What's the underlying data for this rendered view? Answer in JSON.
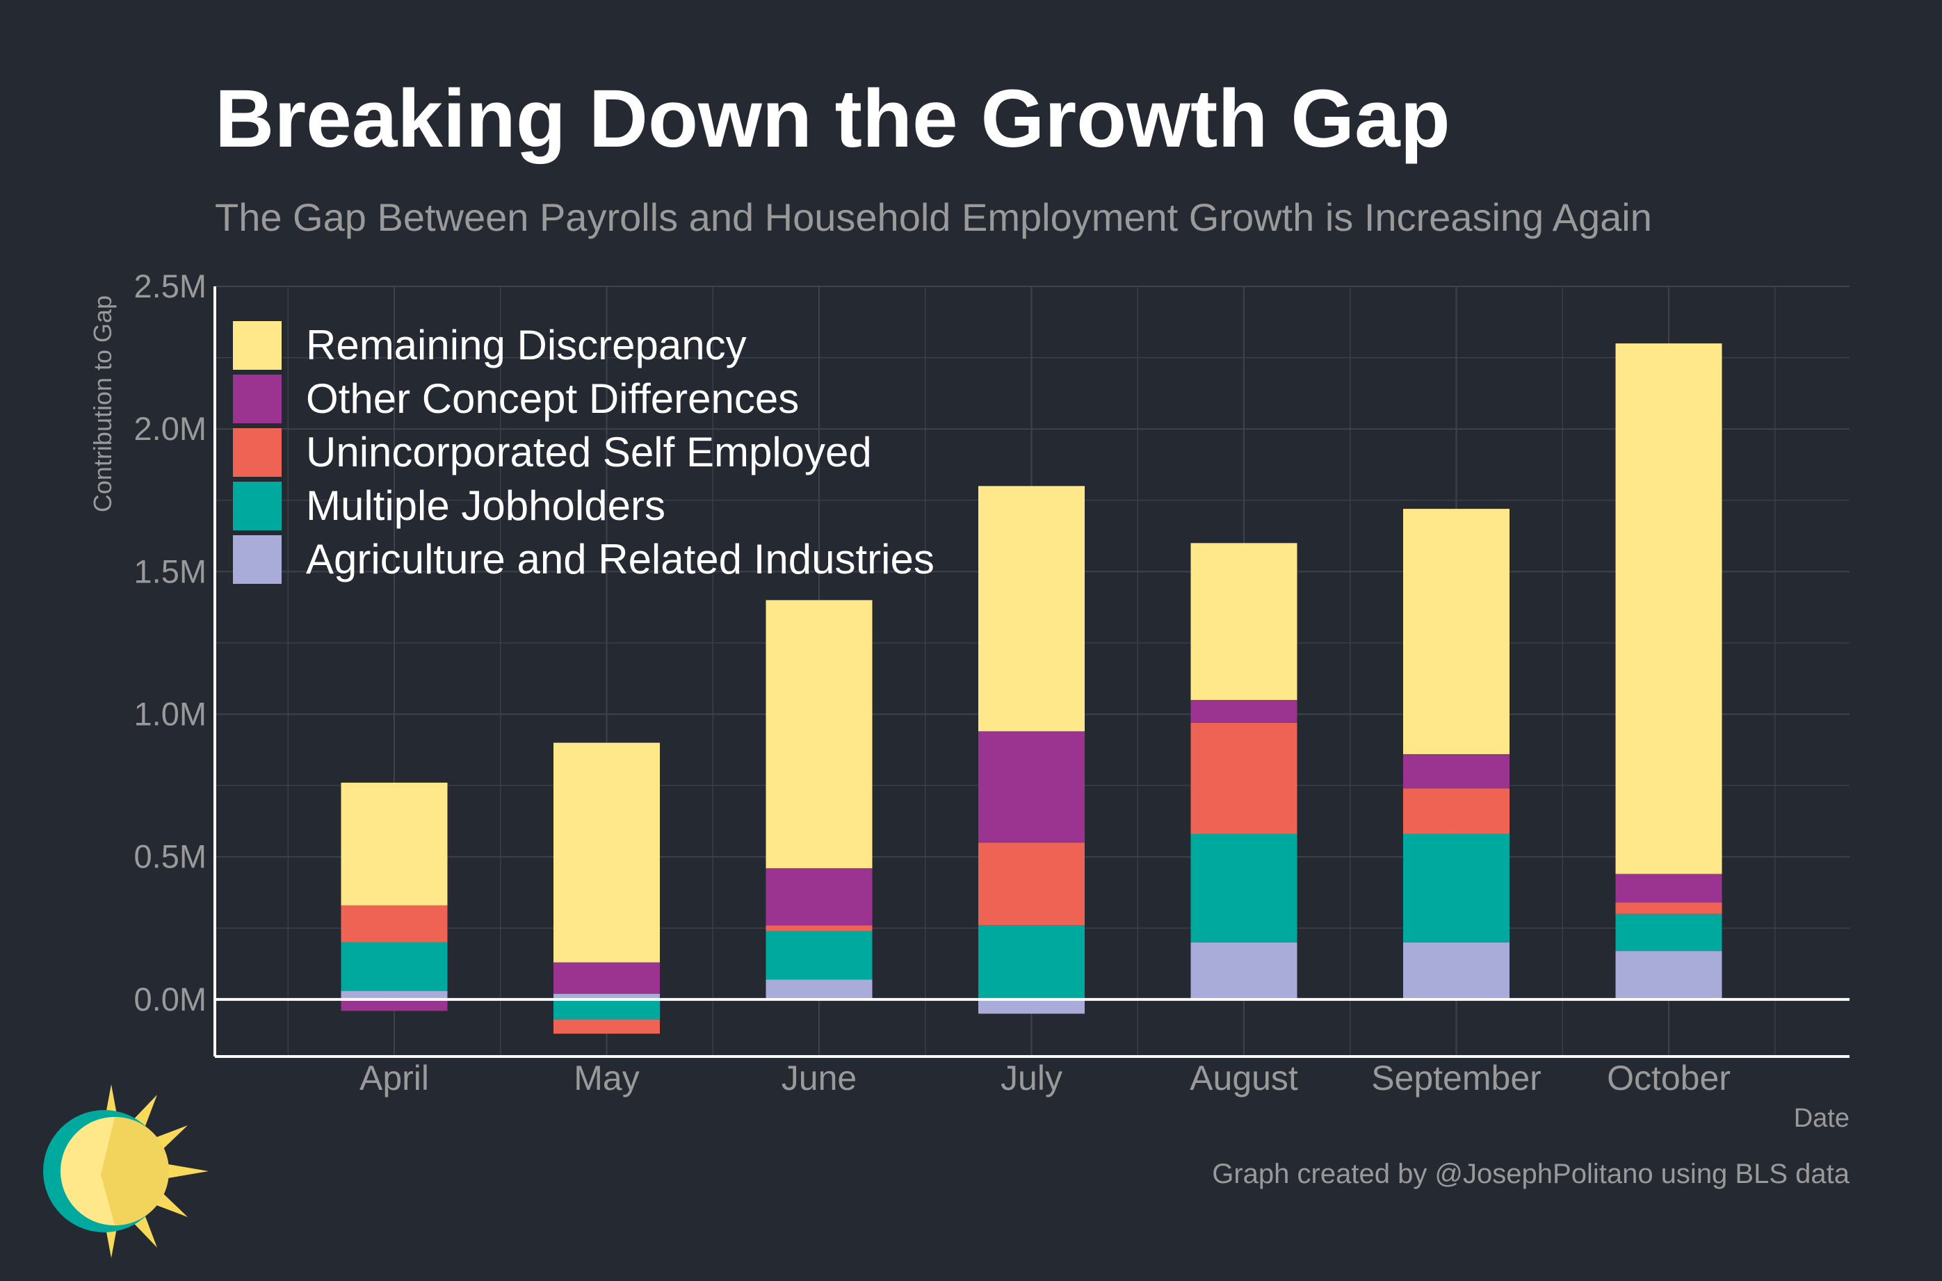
{
  "header": {
    "title": "Breaking Down the Growth Gap",
    "subtitle": "The Gap Between Payrolls and Household Employment Growth is Increasing Again"
  },
  "footer": {
    "caption": "Graph created by @JosephPolitano using BLS data",
    "logo_icon": "sun-logo-icon"
  },
  "chart_data": {
    "type": "bar",
    "stacked": true,
    "title": "Breaking Down the Growth Gap",
    "subtitle": "The Gap Between Payrolls and Household Employment Growth is Increasing Again",
    "xlabel": "Date",
    "ylabel": "Contribution to Gap",
    "categories": [
      "April",
      "May",
      "June",
      "July",
      "August",
      "September",
      "October"
    ],
    "ylim": [
      -0.2,
      2.5
    ],
    "yticks": [
      0.0,
      0.5,
      1.0,
      1.5,
      2.0,
      2.5
    ],
    "ytick_labels": [
      "0.0M",
      "0.5M",
      "1.0M",
      "1.5M",
      "2.0M",
      "2.5M"
    ],
    "unit": "M",
    "grid": true,
    "legend_position": "top-left",
    "series": [
      {
        "name": "Agriculture and Related Industries",
        "color": "#a9abd9",
        "values": [
          0.03,
          0.02,
          0.07,
          -0.05,
          0.2,
          0.2,
          0.17
        ]
      },
      {
        "name": "Multiple Jobholders",
        "color": "#00a99d",
        "values": [
          0.17,
          -0.07,
          0.17,
          0.26,
          0.38,
          0.38,
          0.13
        ]
      },
      {
        "name": "Unincorporated Self Employed",
        "color": "#ef6355",
        "values": [
          0.13,
          -0.05,
          0.02,
          0.29,
          0.39,
          0.16,
          0.04
        ]
      },
      {
        "name": "Other Concept Differences",
        "color": "#9a3490",
        "values": [
          -0.04,
          0.11,
          0.2,
          0.39,
          0.08,
          0.12,
          0.1
        ]
      },
      {
        "name": "Remaining Discrepancy",
        "color": "#ffe88a",
        "values": [
          0.43,
          0.77,
          0.94,
          0.86,
          0.55,
          0.86,
          1.86
        ]
      }
    ]
  }
}
